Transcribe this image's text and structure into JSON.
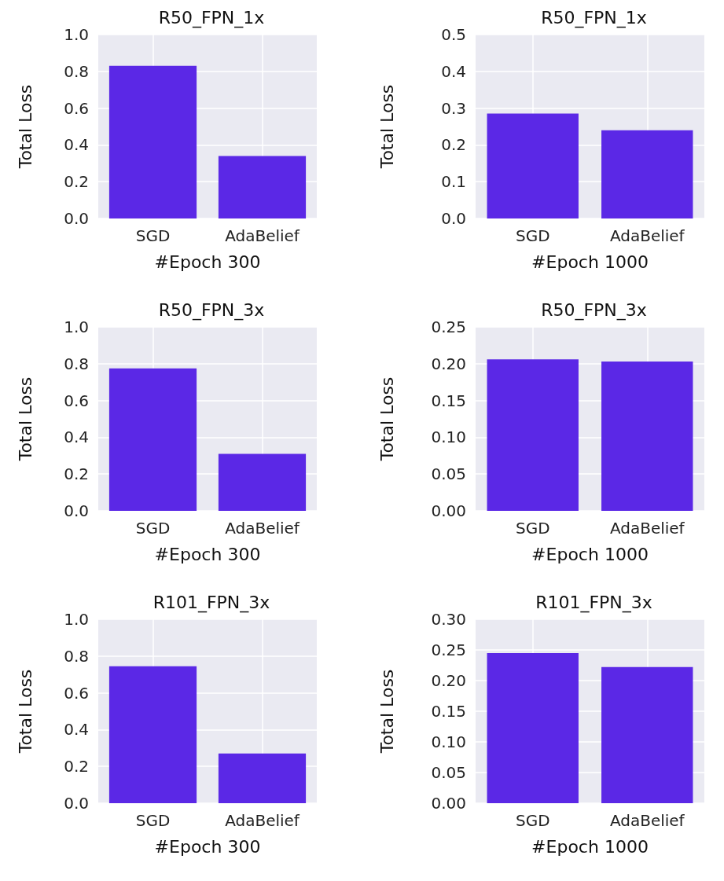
{
  "chart_data": [
    {
      "type": "bar",
      "title": "R50_FPN_1x",
      "xlabel": "#Epoch 300",
      "ylabel": "Total Loss",
      "categories": [
        "SGD",
        "AdaBelief"
      ],
      "values": [
        0.83,
        0.34
      ],
      "color": "#5b28e6",
      "ylim": [
        0,
        1
      ],
      "yticks": [
        {
          "value": 0,
          "label": "0.0"
        },
        {
          "value": 0.2,
          "label": "0.2"
        },
        {
          "value": 0.4,
          "label": "0.4"
        },
        {
          "value": 0.6,
          "label": "0.6"
        },
        {
          "value": 0.8,
          "label": "0.8"
        },
        {
          "value": 1,
          "label": "1.0"
        }
      ],
      "grid": true
    },
    {
      "type": "bar",
      "title": "R50_FPN_1x",
      "xlabel": "#Epoch 1000",
      "ylabel": "Total Loss",
      "categories": [
        "SGD",
        "AdaBelief"
      ],
      "values": [
        0.285,
        0.24
      ],
      "color": "#5b28e6",
      "ylim": [
        0,
        0.5
      ],
      "yticks": [
        {
          "value": 0,
          "label": "0.0"
        },
        0.1,
        0.2,
        0.3,
        0.4,
        0.5
      ],
      "grid": true
    },
    {
      "type": "bar",
      "title": "R50_FPN_3x",
      "xlabel": "#Epoch 300",
      "ylabel": "Total Loss",
      "categories": [
        "SGD",
        "AdaBelief"
      ],
      "values": [
        0.775,
        0.31
      ],
      "color": "#5b28e6",
      "ylim": [
        0,
        1
      ],
      "yticks": [
        {
          "value": 0,
          "label": "0.0"
        },
        {
          "value": 0.2,
          "label": "0.2"
        },
        {
          "value": 0.4,
          "label": "0.4"
        },
        {
          "value": 0.6,
          "label": "0.6"
        },
        {
          "value": 0.8,
          "label": "0.8"
        },
        {
          "value": 1,
          "label": "1.0"
        }
      ],
      "grid": true
    },
    {
      "type": "bar",
      "title": "R50_FPN_3x",
      "xlabel": "#Epoch 1000",
      "ylabel": "Total Loss",
      "categories": [
        "SGD",
        "AdaBelief"
      ],
      "values": [
        0.206,
        0.203
      ],
      "color": "#5b28e6",
      "ylim": [
        0,
        0.25
      ],
      "yticks": [
        {
          "value": 0,
          "label": "0.00"
        },
        {
          "value": 0.05,
          "label": "0.05"
        },
        {
          "value": 0.1,
          "label": "0.10"
        },
        {
          "value": 0.15,
          "label": "0.15"
        },
        {
          "value": 0.2,
          "label": "0.20"
        },
        {
          "value": 0.25,
          "label": "0.25"
        }
      ],
      "grid": true
    },
    {
      "type": "bar",
      "title": "R101_FPN_3x",
      "xlabel": "#Epoch 300",
      "ylabel": "Total Loss",
      "categories": [
        "SGD",
        "AdaBelief"
      ],
      "values": [
        0.745,
        0.27
      ],
      "color": "#5b28e6",
      "ylim": [
        0,
        1
      ],
      "yticks": [
        {
          "value": 0,
          "label": "0.0"
        },
        {
          "value": 0.2,
          "label": "0.2"
        },
        {
          "value": 0.4,
          "label": "0.4"
        },
        {
          "value": 0.6,
          "label": "0.6"
        },
        {
          "value": 0.8,
          "label": "0.8"
        },
        {
          "value": 1,
          "label": "1.0"
        }
      ],
      "grid": true
    },
    {
      "type": "bar",
      "title": "R101_FPN_3x",
      "xlabel": "#Epoch 1000",
      "ylabel": "Total Loss",
      "categories": [
        "SGD",
        "AdaBelief"
      ],
      "values": [
        0.245,
        0.222
      ],
      "color": "#5b28e6",
      "ylim": [
        0,
        0.3
      ],
      "yticks": [
        {
          "value": 0,
          "label": "0.00"
        },
        {
          "value": 0.05,
          "label": "0.05"
        },
        {
          "value": 0.1,
          "label": "0.10"
        },
        {
          "value": 0.15,
          "label": "0.15"
        },
        {
          "value": 0.2,
          "label": "0.20"
        },
        {
          "value": 0.25,
          "label": "0.25"
        },
        {
          "value": 0.3,
          "label": "0.30"
        }
      ],
      "grid": true
    }
  ]
}
